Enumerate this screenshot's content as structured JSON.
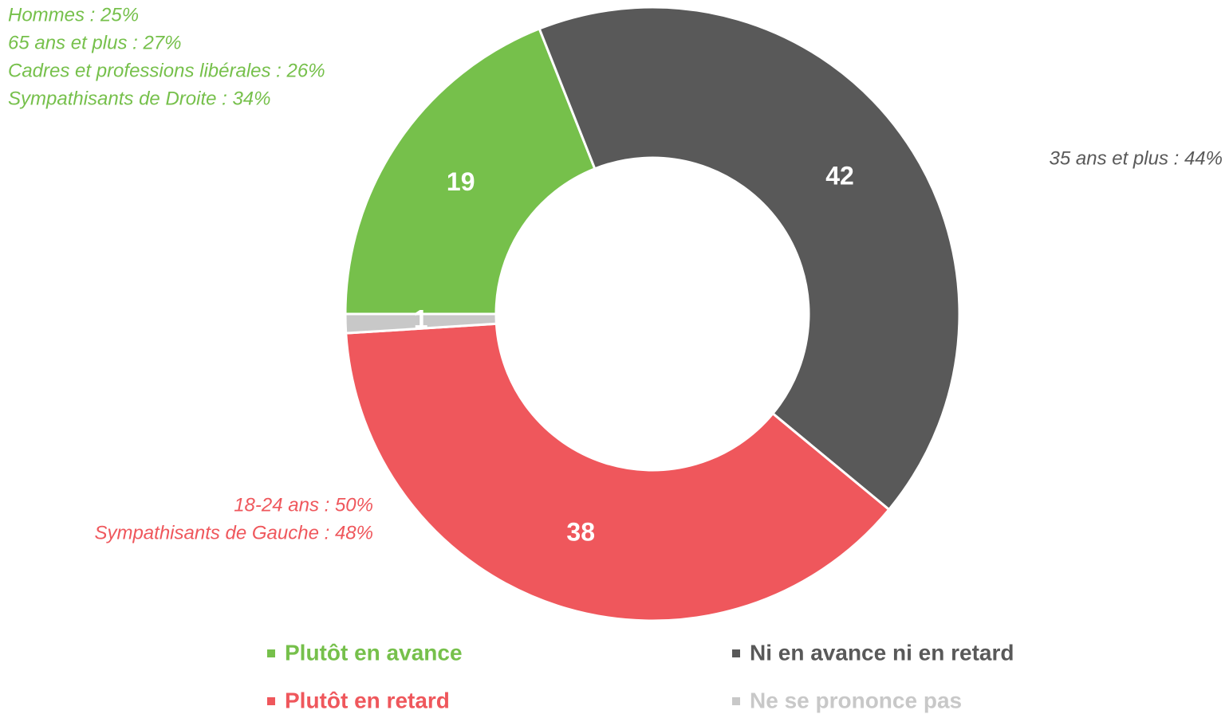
{
  "chart_data": {
    "type": "donut",
    "categories": [
      "Plutôt en avance",
      "Ni en avance ni en retard",
      "Plutôt en retard",
      "Ne se prononce pas"
    ],
    "values": [
      19,
      42,
      38,
      1
    ],
    "colors": [
      "#76c04b",
      "#595959",
      "#ef575c",
      "#c8c8c8"
    ],
    "annotations": [
      {
        "color": "#76c04b",
        "lines": [
          "Hommes : 25%",
          "65 ans et plus  : 27%",
          "Cadres et professions libérales  : 26%",
          "Sympathisants de Droite  : 34%"
        ]
      },
      {
        "color": "#595959",
        "lines": [
          "35 ans et plus  : 44%"
        ]
      },
      {
        "color": "#ef575c",
        "lines": [
          "18-24 ans : 50%",
          "Sympathisants de Gauche  : 48%"
        ]
      }
    ]
  }
}
